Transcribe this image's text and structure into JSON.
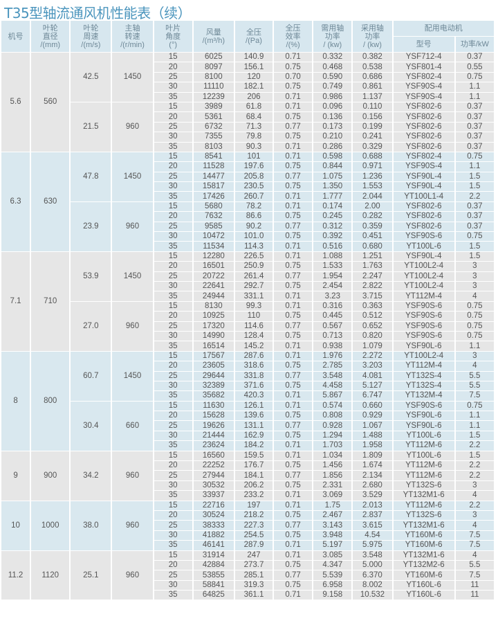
{
  "title": "T35型轴流通风机性能表（续）",
  "headers": {
    "machine": "机号",
    "diameter": "叶轮\n直径\n/(mm)",
    "tip_speed": "叶轮\n周速\n/(m/s)",
    "rpm": "主轴\n转速\n/(r/min)",
    "angle": "叶片\n角度\n(°)",
    "flow": "风量\n/(m³/h)",
    "pressure": "全压\n/(Pa)",
    "efficiency": "全压\n效率\n/(%)",
    "required_power": "需用轴\n功率\n/ (kw)",
    "used_power": "采用轴\n功率\n/ (kw)",
    "motor": "配用电动机",
    "motor_model": "型号",
    "motor_power": "功率/kW"
  },
  "colors": {
    "gray": "#e6e6e6",
    "blue": "#d9e8ef",
    "title": "#4b95bd"
  },
  "groups": [
    {
      "machine": "5.6",
      "diameter": "560",
      "subgroups": [
        {
          "speed": "42.5",
          "rpm": "1450",
          "rows": [
            [
              "15",
              "6025",
              "140.9",
              "0.71",
              "0.332",
              "0.382",
              "YSF712-4",
              "0.37"
            ],
            [
              "20",
              "8097",
              "156.1",
              "0.75",
              "0.468",
              "0.538",
              "YSF801-4",
              "0.55"
            ],
            [
              "25",
              "8100",
              "120",
              "0.70",
              "0.590",
              "0.686",
              "YSF802-4",
              "0.75"
            ],
            [
              "30",
              "11110",
              "182.1",
              "0.75",
              "0.749",
              "0.861",
              "YSF90S-4",
              "1.1"
            ],
            [
              "35",
              "12239",
              "206",
              "0.71",
              "0.986",
              "1.137",
              "YSF90S-4",
              "1.1"
            ]
          ]
        },
        {
          "speed": "21.5",
          "rpm": "960",
          "rows": [
            [
              "15",
              "3989",
              "61.8",
              "0.71",
              "0.096",
              "0.110",
              "YSF802-6",
              "0.37"
            ],
            [
              "20",
              "5361",
              "68.4",
              "0.75",
              "0.136",
              "0.156",
              "YSF802-6",
              "0.37"
            ],
            [
              "25",
              "6732",
              "71.3",
              "0.77",
              "0.173",
              "0.199",
              "YSF802-6",
              "0.37"
            ],
            [
              "30",
              "7355",
              "79.8",
              "0.75",
              "0.210",
              "0.241",
              "YSF802-6",
              "0.37"
            ],
            [
              "35",
              "8103",
              "90.3",
              "0.71",
              "0.286",
              "0.329",
              "YSF802-6",
              "0.37"
            ]
          ]
        }
      ]
    },
    {
      "machine": "6.3",
      "diameter": "630",
      "subgroups": [
        {
          "speed": "47.8",
          "rpm": "1450",
          "rows": [
            [
              "15",
              "8541",
              "101",
              "0.71",
              "0.598",
              "0.688",
              "YSF802-4",
              "0.75"
            ],
            [
              "20",
              "11528",
              "197.6",
              "0.75",
              "0.844",
              "0.971",
              "YSF90S-4",
              "1.1"
            ],
            [
              "25",
              "14477",
              "205.8",
              "0.77",
              "1.075",
              "1.236",
              "YSF90L-4",
              "1.5"
            ],
            [
              "30",
              "15817",
              "230.5",
              "0.75",
              "1.350",
              "1.553",
              "YSF90L-4",
              "1.5"
            ],
            [
              "35",
              "17426",
              "260.7",
              "0.71",
              "1.777",
              "2.044",
              "YT100L1-4",
              "2.2"
            ]
          ]
        },
        {
          "speed": "23.9",
          "rpm": "960",
          "rows": [
            [
              "15",
              "5680",
              "78.2",
              "0.71",
              "0.174",
              "2.00",
              "YSF802-6",
              "0.37"
            ],
            [
              "20",
              "7632",
              "86.6",
              "0.75",
              "0.245",
              "0.282",
              "YSF802-6",
              "0.37"
            ],
            [
              "25",
              "9585",
              "90.2",
              "0.77",
              "0.312",
              "0.359",
              "YSF802-6",
              "0.37"
            ],
            [
              "30",
              "10472",
              "101.0",
              "0.75",
              "0.392",
              "0.451",
              "YSF90S-6",
              "0.75"
            ],
            [
              "35",
              "11534",
              "114.3",
              "0.71",
              "0.516",
              "0.680",
              "YT100L-6",
              "1.5"
            ]
          ]
        }
      ]
    },
    {
      "machine": "7.1",
      "diameter": "710",
      "subgroups": [
        {
          "speed": "53.9",
          "rpm": "1450",
          "rows": [
            [
              "15",
              "12280",
              "226.5",
              "0.71",
              "1.088",
              "1.251",
              "YSF90L-4",
              "1.5"
            ],
            [
              "20",
              "16501",
              "250.9",
              "0.75",
              "1.533",
              "1.763",
              "YT100L2-4",
              "3"
            ],
            [
              "25",
              "20722",
              "261.4",
              "0.77",
              "1.954",
              "2.247",
              "YT100L2-4",
              "3"
            ],
            [
              "30",
              "22641",
              "292.7",
              "0.75",
              "2.454",
              "2.822",
              "YT100L2-4",
              "3"
            ],
            [
              "35",
              "24944",
              "331.1",
              "0.71",
              "3.23",
              "3.715",
              "YT112M-4",
              "4"
            ]
          ]
        },
        {
          "speed": "27.0",
          "rpm": "960",
          "rows": [
            [
              "15",
              "8130",
              "99.3",
              "0.71",
              "0.316",
              "0.363",
              "YSF90S-6",
              "0.75"
            ],
            [
              "20",
              "10925",
              "110",
              "0.75",
              "0.445",
              "0.512",
              "YSF90S-6",
              "0.75"
            ],
            [
              "25",
              "17320",
              "114.6",
              "0.77",
              "0.567",
              "0.652",
              "YSF90S-6",
              "0.75"
            ],
            [
              "30",
              "14990",
              "128.4",
              "0.75",
              "0.713",
              "0.820",
              "YSF90S-6",
              "0.75"
            ],
            [
              "35",
              "16514",
              "145.2",
              "0.71",
              "0.938",
              "1.079",
              "YSF90L-6",
              "1.1"
            ]
          ]
        }
      ]
    },
    {
      "machine": "8",
      "diameter": "800",
      "subgroups": [
        {
          "speed": "60.7",
          "rpm": "1450",
          "rows": [
            [
              "15",
              "17567",
              "287.6",
              "0.71",
              "1.976",
              "2.272",
              "YT100L2-4",
              "3"
            ],
            [
              "20",
              "23605",
              "318.6",
              "0.75",
              "2.785",
              "3.203",
              "YT112M-4",
              "4"
            ],
            [
              "25",
              "29644",
              "331.8",
              "0.77",
              "3.548",
              "4.081",
              "YT132S-4",
              "5.5"
            ],
            [
              "30",
              "32389",
              "371.6",
              "0.75",
              "4.458",
              "5.127",
              "YT132S-4",
              "5.5"
            ],
            [
              "35",
              "35682",
              "420.3",
              "0.71",
              "5.867",
              "6.747",
              "YT132M-4",
              "7.5"
            ]
          ]
        },
        {
          "speed": "30.4",
          "rpm": "660",
          "rows": [
            [
              "15",
              "11630",
              "126.1",
              "0.71",
              "0.574",
              "0.660",
              "YSF90S-6",
              "0.75"
            ],
            [
              "20",
              "15628",
              "139.6",
              "0.75",
              "0.808",
              "0.929",
              "YSF90L-6",
              "1.1"
            ],
            [
              "25",
              "19626",
              "131.1",
              "0.77",
              "0.928",
              "1.067",
              "YSF90L-6",
              "1.1"
            ],
            [
              "30",
              "21444",
              "162.9",
              "0.75",
              "1.294",
              "1.488",
              "YT100L-6",
              "1.5"
            ],
            [
              "35",
              "23624",
              "184.2",
              "0.71",
              "1.703",
              "1.958",
              "YT112M-6",
              "2.2"
            ]
          ]
        }
      ]
    },
    {
      "machine": "9",
      "diameter": "900",
      "subgroups": [
        {
          "speed": "34.2",
          "rpm": "960",
          "rows": [
            [
              "15",
              "16560",
              "159.5",
              "0.71",
              "1.034",
              "1.809",
              "YT100L-6",
              "1.5"
            ],
            [
              "20",
              "22252",
              "176.7",
              "0.75",
              "1.456",
              "1.674",
              "YT112M-6",
              "2.2"
            ],
            [
              "25",
              "27944",
              "184.1",
              "0.77",
              "1.856",
              "2.134",
              "YT112M-6",
              "2.2"
            ],
            [
              "30",
              "30532",
              "206.2",
              "0.75",
              "2.331",
              "2.680",
              "YT132S-6",
              "3"
            ],
            [
              "35",
              "33937",
              "233.2",
              "0.71",
              "3.069",
              "3.529",
              "YT132M1-6",
              "4"
            ]
          ]
        }
      ]
    },
    {
      "machine": "10",
      "diameter": "1000",
      "subgroups": [
        {
          "speed": "38.0",
          "rpm": "960",
          "rows": [
            [
              "15",
              "22716",
              "197",
              "0.71",
              "1.75",
              "2.013",
              "YT112M-6",
              "2.2"
            ],
            [
              "20",
              "30524",
              "218.2",
              "0.75",
              "2.467",
              "2.837",
              "YT132S-6",
              "3"
            ],
            [
              "25",
              "38333",
              "227.3",
              "0.77",
              "3.143",
              "3.615",
              "YT132M1-6",
              "4"
            ],
            [
              "30",
              "41882",
              "254.5",
              "0.75",
              "3.948",
              "4.54",
              "YT160M-6",
              "7.5"
            ],
            [
              "35",
              "46141",
              "287.9",
              "0.71",
              "5.197",
              "5.975",
              "YT160M-6",
              "7.5"
            ]
          ]
        }
      ]
    },
    {
      "machine": "11.2",
      "diameter": "1120",
      "subgroups": [
        {
          "speed": "25.1",
          "rpm": "960",
          "rows": [
            [
              "15",
              "31914",
              "247",
              "0.71",
              "3.085",
              "3.548",
              "YT132M1-6",
              "4"
            ],
            [
              "20",
              "42884",
              "273.7",
              "0.75",
              "4.347",
              "5.000",
              "YT132M2-6",
              "5.5"
            ],
            [
              "25",
              "53855",
              "285.1",
              "0.77",
              "5.539",
              "6.370",
              "YT160M-6",
              "7.5"
            ],
            [
              "30",
              "58841",
              "319.3",
              "0.75",
              "6.958",
              "8.002",
              "YT160L-6",
              "11"
            ],
            [
              "35",
              "64825",
              "361.1",
              "0.71",
              "9.158",
              "10.532",
              "YT160L-6",
              "11"
            ]
          ]
        }
      ]
    }
  ]
}
